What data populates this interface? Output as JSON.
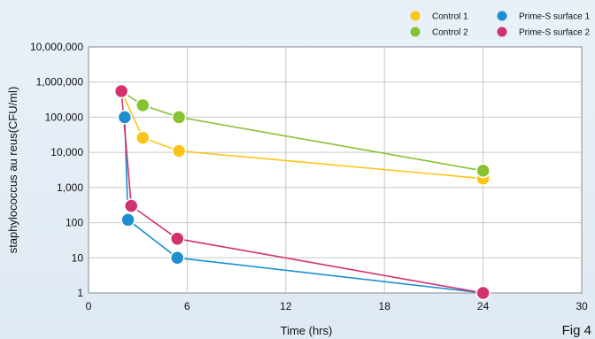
{
  "chart_data": {
    "type": "line",
    "xlabel": "Time (hrs)",
    "ylabel": "staphylococcus au reus(CFU/ml)",
    "xlim": [
      0,
      30
    ],
    "y_log_scale": true,
    "ylim": [
      1,
      10000000
    ],
    "grid": true,
    "legend_position": "top-right",
    "x_ticks": [
      "0",
      "6",
      "12",
      "18",
      "24",
      "30"
    ],
    "y_ticks": [
      "1",
      "10",
      "100",
      "1,000",
      "10,000",
      "100,000",
      "1,000,000",
      "10,000,000"
    ],
    "annotation": "Fig 4",
    "series": [
      {
        "name": "Control 1",
        "color": "#fcc419",
        "points": [
          {
            "x": 2.0,
            "y": 550000
          },
          {
            "x": 3.3,
            "y": 26000
          },
          {
            "x": 5.5,
            "y": 11000
          },
          {
            "x": 24.0,
            "y": 1800
          }
        ]
      },
      {
        "name": "Control 2",
        "color": "#86c232",
        "points": [
          {
            "x": 2.0,
            "y": 550000
          },
          {
            "x": 3.3,
            "y": 220000
          },
          {
            "x": 5.5,
            "y": 100000
          },
          {
            "x": 24.0,
            "y": 3000
          }
        ]
      },
      {
        "name": "Prime-S surface 1",
        "color": "#1c8fd0",
        "points": [
          {
            "x": 2.2,
            "y": 100000
          },
          {
            "x": 2.4,
            "y": 120
          },
          {
            "x": 5.4,
            "y": 10
          },
          {
            "x": 24.0,
            "y": 1
          }
        ]
      },
      {
        "name": "Prime-S surface 2",
        "color": "#d1326d",
        "points": [
          {
            "x": 2.0,
            "y": 550000
          },
          {
            "x": 2.6,
            "y": 300
          },
          {
            "x": 5.4,
            "y": 35
          },
          {
            "x": 24.0,
            "y": 1
          }
        ]
      }
    ]
  }
}
